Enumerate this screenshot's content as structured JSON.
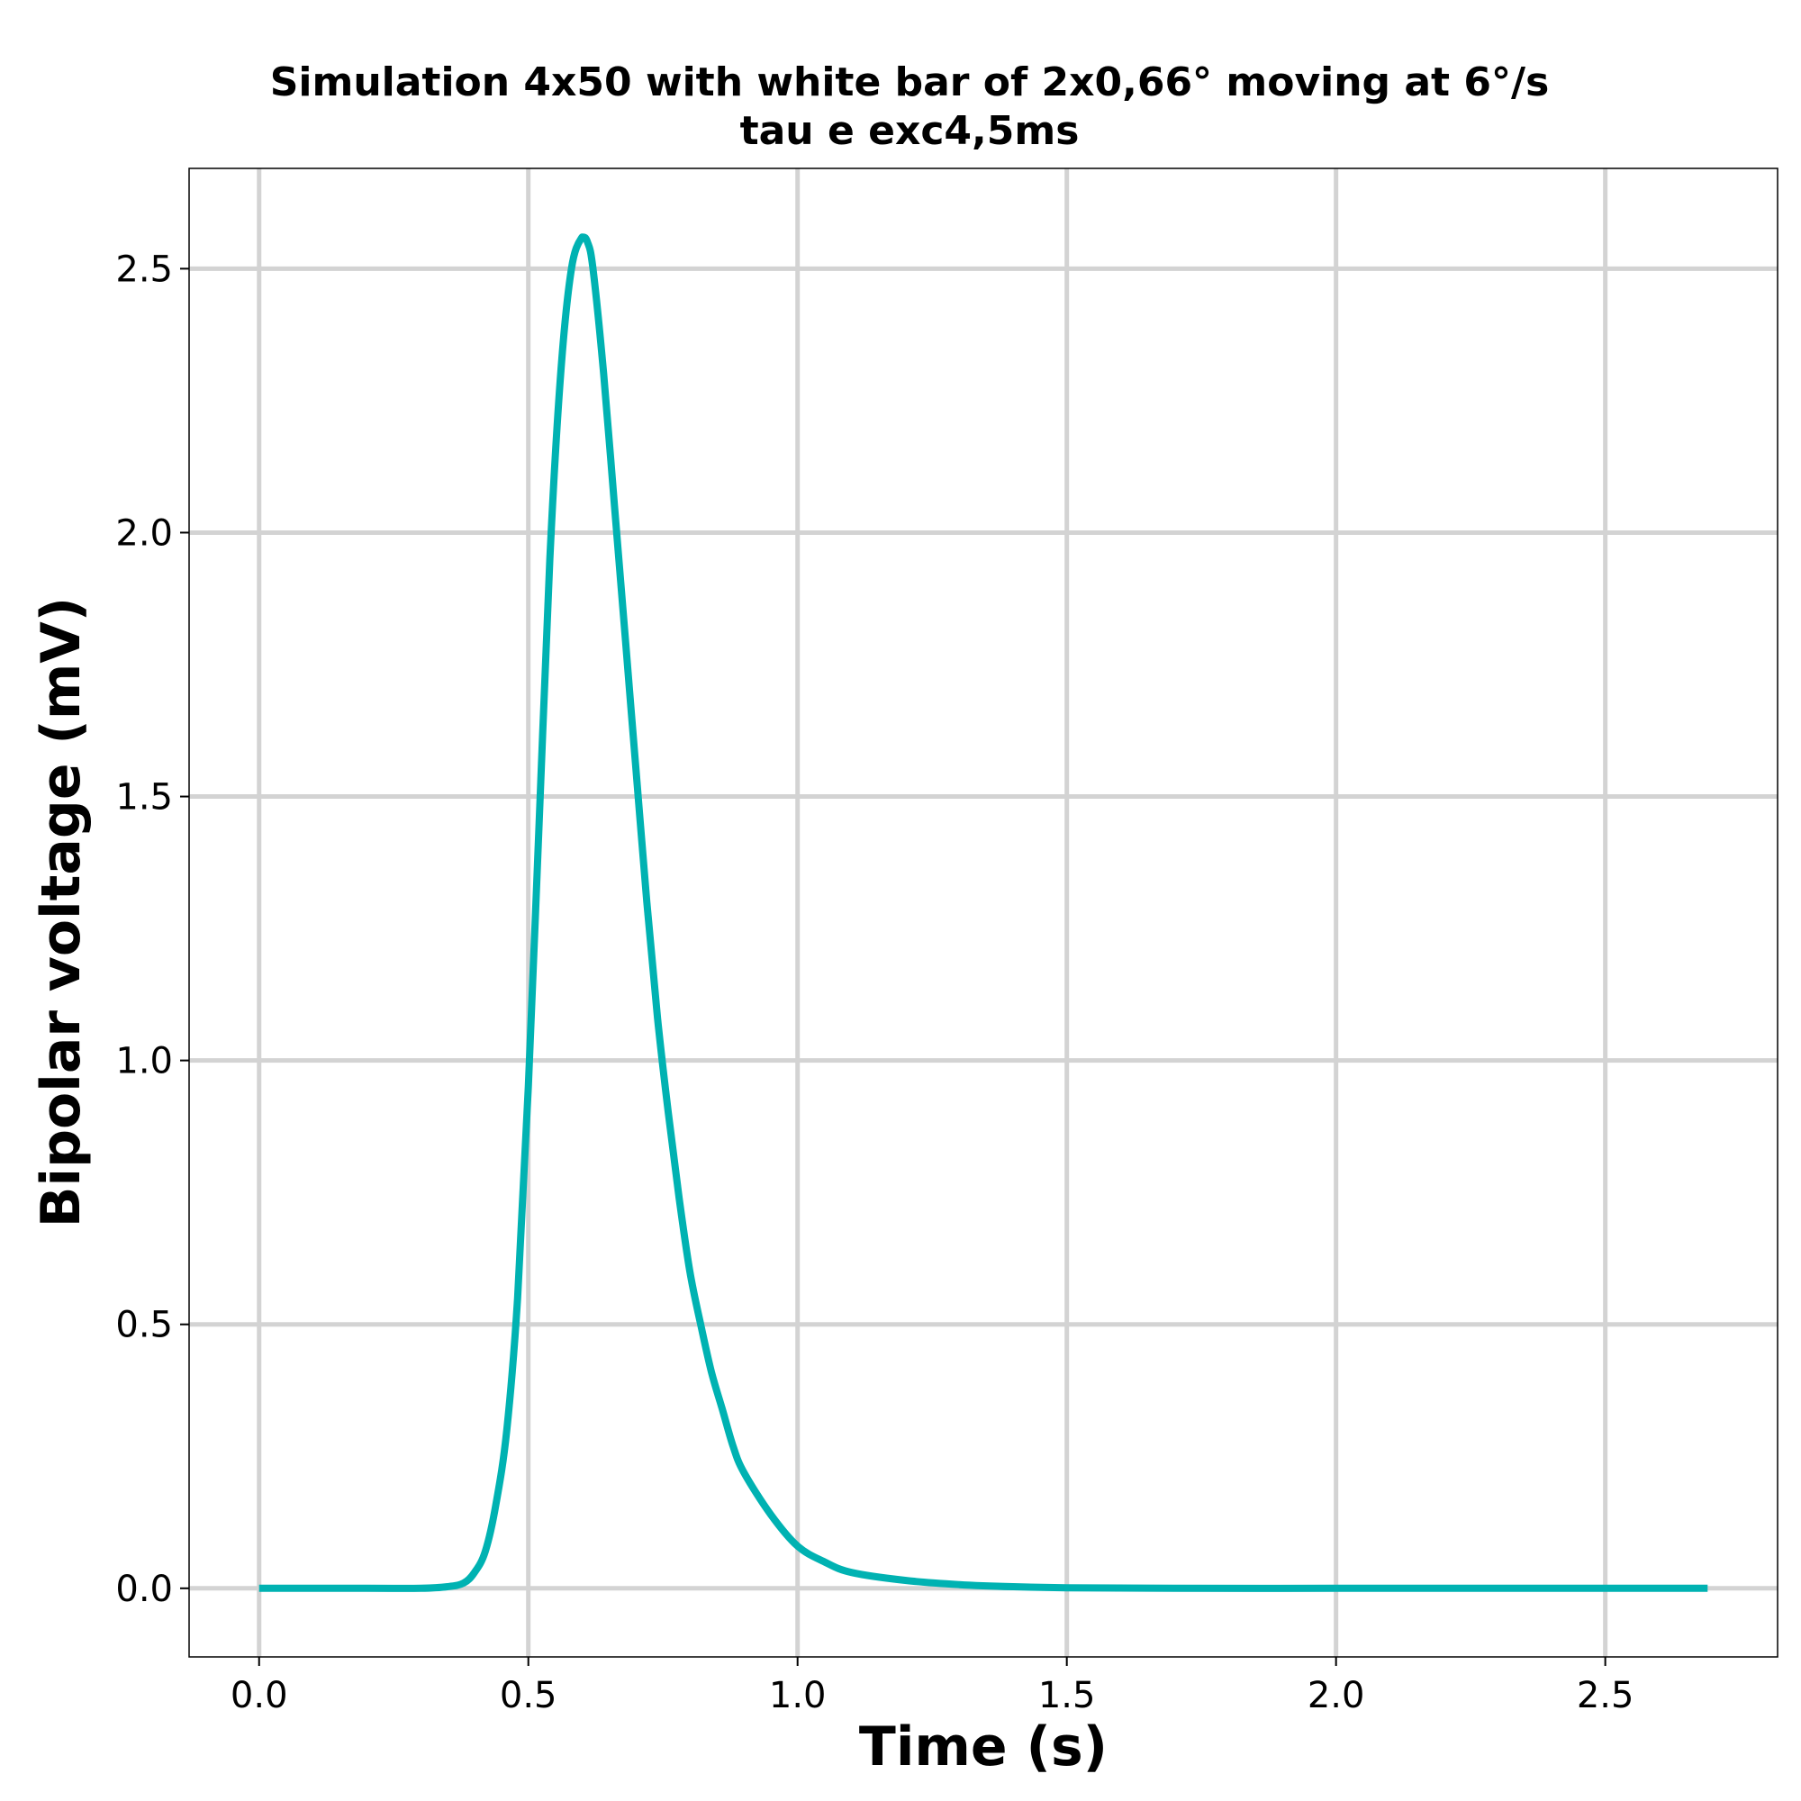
{
  "chart_data": {
    "type": "line",
    "title": [
      "Simulation 4x50 with white bar of 2x0,66° moving at 6°/s",
      "tau e exc4,5ms"
    ],
    "xlabel": "Time (s)",
    "ylabel": "Bipolar voltage (mV)",
    "xlim": [
      -0.13,
      2.82
    ],
    "ylim": [
      -0.13,
      2.69
    ],
    "xticks": [
      0.0,
      0.5,
      1.0,
      1.5,
      2.0,
      2.5
    ],
    "xtick_labels": [
      "0.0",
      "0.5",
      "1.0",
      "1.5",
      "2.0",
      "2.5"
    ],
    "yticks": [
      0.0,
      0.5,
      1.0,
      1.5,
      2.0,
      2.5
    ],
    "ytick_labels": [
      "0.0",
      "0.5",
      "1.0",
      "1.5",
      "2.0",
      "2.5"
    ],
    "grid": true,
    "legend": false,
    "line_color": "#00b2b2",
    "series": [
      {
        "x": [
          0.0,
          0.2,
          0.3,
          0.35,
          0.38,
          0.4,
          0.42,
          0.44,
          0.46,
          0.48,
          0.5,
          0.52,
          0.54,
          0.56,
          0.58,
          0.6,
          0.61,
          0.62,
          0.64,
          0.66,
          0.68,
          0.7,
          0.72,
          0.74,
          0.76,
          0.78,
          0.8,
          0.82,
          0.84,
          0.86,
          0.88,
          0.9,
          0.95,
          1.0,
          1.05,
          1.1,
          1.2,
          1.3,
          1.4,
          1.5,
          1.7,
          2.0,
          2.3,
          2.69
        ],
        "y": [
          0.0,
          0.0,
          0.0,
          0.003,
          0.01,
          0.03,
          0.07,
          0.16,
          0.3,
          0.55,
          0.95,
          1.45,
          1.95,
          2.3,
          2.5,
          2.56,
          2.55,
          2.5,
          2.3,
          2.05,
          1.8,
          1.55,
          1.3,
          1.08,
          0.9,
          0.74,
          0.6,
          0.5,
          0.41,
          0.34,
          0.27,
          0.22,
          0.14,
          0.08,
          0.05,
          0.03,
          0.015,
          0.007,
          0.003,
          0.001,
          0.0,
          0.0,
          0.0,
          0.0
        ]
      }
    ]
  }
}
